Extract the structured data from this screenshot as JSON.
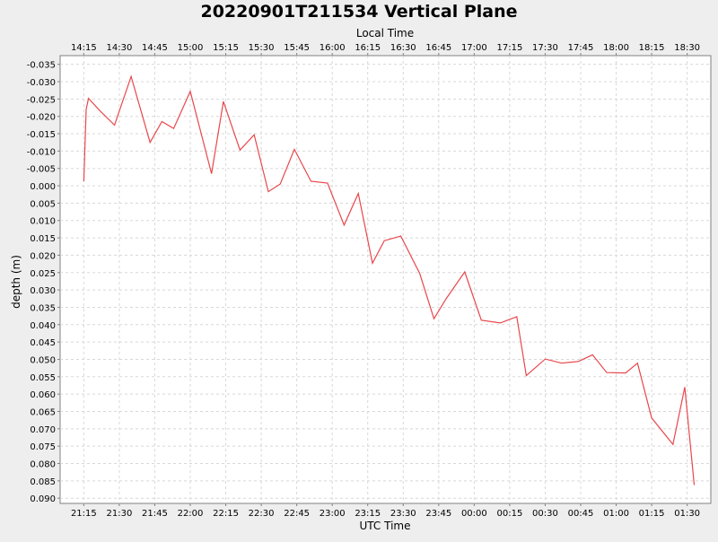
{
  "colors": {
    "background": "#eeeeee",
    "plot_background": "#ffffff",
    "grid": "#d8d8d8",
    "series": "#e8474c",
    "text": "#000000"
  },
  "chart_data": {
    "type": "line",
    "title": "20220901T211534 Vertical Plane",
    "xlabel": "UTC Time",
    "x2label": "Local Time",
    "ylabel": "depth (m)",
    "y_inverted": true,
    "grid": true,
    "legend": "none",
    "xlim": [
      "21:05",
      "01:40"
    ],
    "ylim": [
      -0.0375,
      0.0915
    ],
    "x_ticks": [
      "21:15",
      "21:30",
      "21:45",
      "22:00",
      "22:15",
      "22:30",
      "22:45",
      "23:00",
      "23:15",
      "23:30",
      "23:45",
      "00:00",
      "00:15",
      "00:30",
      "00:45",
      "01:00",
      "01:15",
      "01:30"
    ],
    "x2_ticks": [
      "14:15",
      "14:30",
      "14:45",
      "15:00",
      "15:15",
      "15:30",
      "15:45",
      "16:00",
      "16:15",
      "16:30",
      "16:45",
      "17:00",
      "17:15",
      "17:30",
      "17:45",
      "18:00",
      "18:15",
      "18:30"
    ],
    "y_ticks": [
      "-0.035",
      "-0.030",
      "-0.025",
      "-0.020",
      "-0.015",
      "-0.010",
      "-0.005",
      "0.000",
      "0.005",
      "0.010",
      "0.015",
      "0.020",
      "0.025",
      "0.030",
      "0.035",
      "0.040",
      "0.045",
      "0.050",
      "0.055",
      "0.060",
      "0.065",
      "0.070",
      "0.075",
      "0.080",
      "0.085",
      "0.090"
    ],
    "series": [
      {
        "x": [
          "21:15",
          "21:16",
          "21:17",
          "21:22",
          "21:28",
          "21:35",
          "21:43",
          "21:48",
          "21:53",
          "22:00",
          "22:09",
          "22:14",
          "22:21",
          "22:27",
          "22:33",
          "22:38",
          "22:44",
          "22:51",
          "22:58",
          "23:05",
          "23:11",
          "23:17",
          "23:22",
          "23:29",
          "23:37",
          "23:43",
          "23:48",
          "23:56",
          "24:03",
          "24:11",
          "24:18",
          "24:22",
          "24:30",
          "24:37",
          "24:44",
          "24:50",
          "24:56",
          "25:04",
          "25:09",
          "25:15",
          "25:24",
          "25:29",
          "25:33"
        ],
        "y": [
          -0.0013,
          -0.022,
          -0.0252,
          -0.0215,
          -0.0175,
          -0.0315,
          -0.0125,
          -0.0185,
          -0.0165,
          -0.0272,
          -0.0035,
          -0.0243,
          -0.0103,
          -0.0147,
          0.0017,
          -0.0005,
          -0.0105,
          -0.0013,
          -0.0008,
          0.0113,
          0.0022,
          0.0223,
          0.0158,
          0.0145,
          0.0253,
          0.0383,
          0.0327,
          0.0248,
          0.0387,
          0.0395,
          0.0377,
          0.0547,
          0.0499,
          0.0511,
          0.0506,
          0.0487,
          0.0538,
          0.0539,
          0.0511,
          0.0669,
          0.0745,
          0.058,
          0.0862
        ]
      }
    ]
  }
}
